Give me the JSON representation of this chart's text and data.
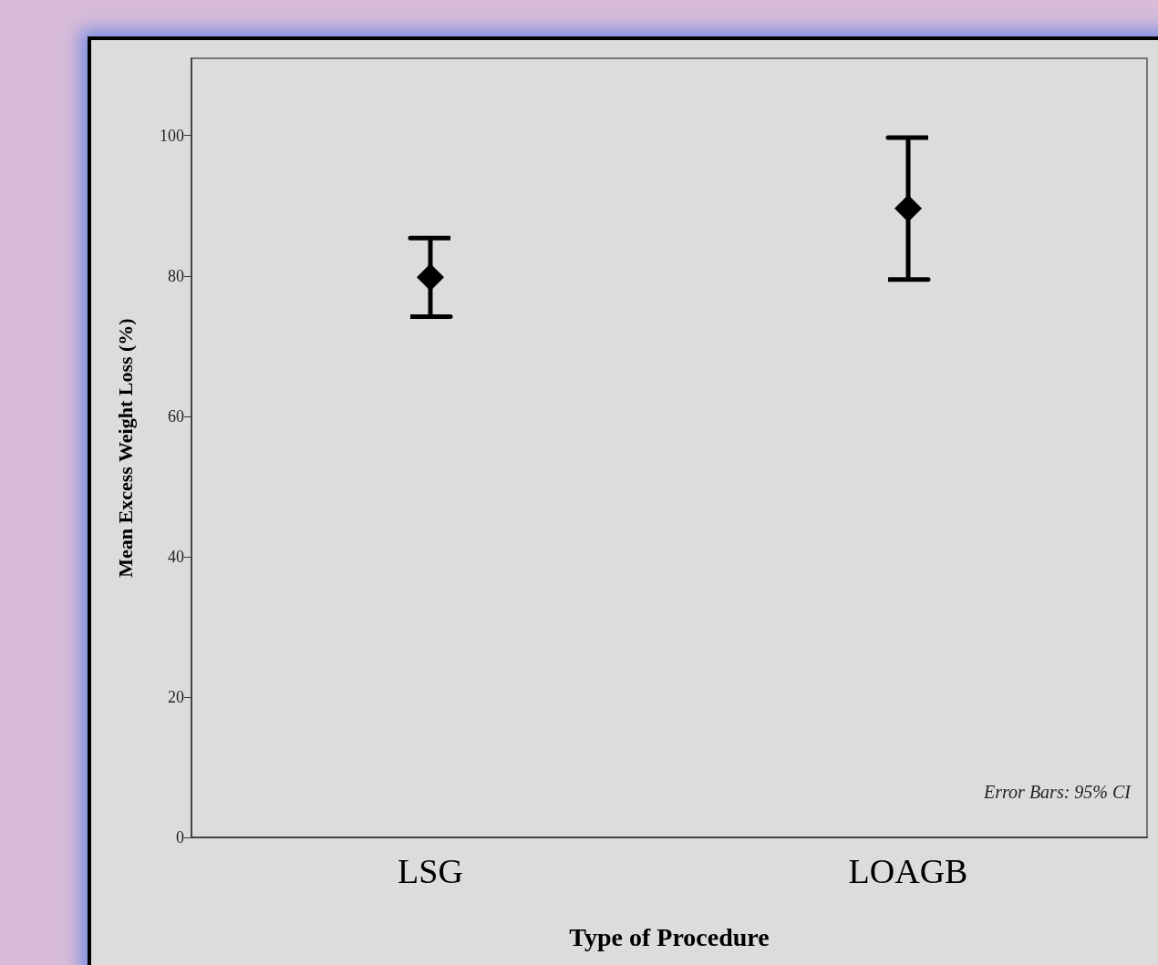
{
  "chart_data": {
    "type": "scatter",
    "xlabel": "Type of Procedure",
    "ylabel": "Mean Excess Weight Loss (%)",
    "categories": [
      "LSG",
      "LOAGB"
    ],
    "values": [
      79.8,
      89.6
    ],
    "errors": [
      5.6,
      10.1
    ],
    "color": "#000000",
    "marker": "diamond",
    "ylim": [
      0,
      111
    ],
    "yticks": [
      0,
      20,
      40,
      60,
      80,
      100
    ],
    "grid": false,
    "annotations": [
      "Error Bars: 95% CI"
    ]
  }
}
